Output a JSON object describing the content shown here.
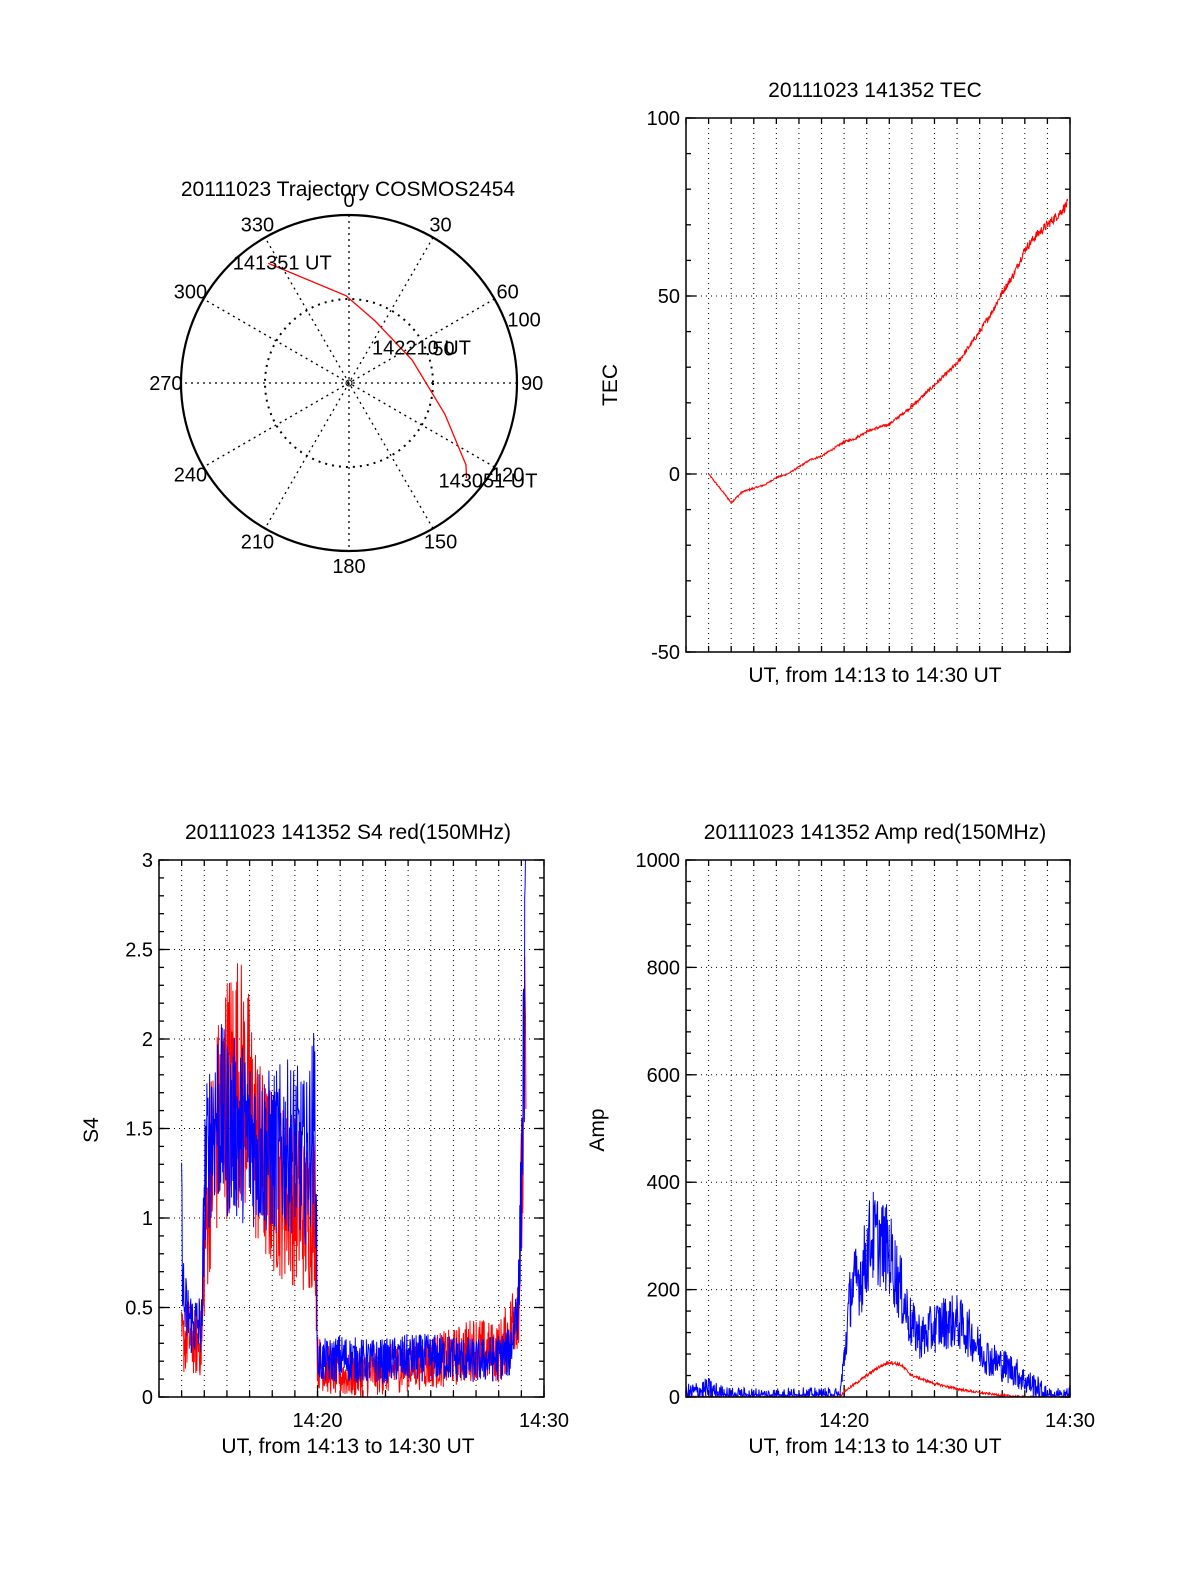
{
  "colors": {
    "red": "#ff0000",
    "blue": "#0000ff",
    "axis": "#000000"
  },
  "chart_data": [
    {
      "type": "polar",
      "title": "20111023 Trajectory COSMOS2454",
      "angle_labels": [
        "0",
        "30",
        "60",
        "90",
        "120",
        "150",
        "180",
        "210",
        "240",
        "270",
        "300",
        "330"
      ],
      "ring_labels": [
        "50",
        "100"
      ],
      "ring_values": [
        50,
        100
      ],
      "series": [
        {
          "color": "#ff0000",
          "points": [
            {
              "az": 326,
              "r": 86
            },
            {
              "az": 358,
              "r": 52
            },
            {
              "az": 23,
              "r": 40
            },
            {
              "az": 70,
              "r": 40
            },
            {
              "az": 108,
              "r": 60
            },
            {
              "az": 125,
              "r": 85
            },
            {
              "az": 129,
              "r": 90
            }
          ]
        }
      ],
      "annotations": [
        {
          "text": "141351 UT",
          "az": 331,
          "r": 82
        },
        {
          "text": "142210 UT",
          "az": 64,
          "r": 48
        },
        {
          "text": "143051 UT",
          "az": 125,
          "r": 101
        }
      ]
    },
    {
      "type": "line",
      "title": "20111023 141352 TEC",
      "xlabel": "UT, from 14:13 to 14:30 UT",
      "ylabel": "TEC",
      "xlim": [
        13.0,
        30.0
      ],
      "ylim": [
        -50,
        100
      ],
      "yticks": [
        "-50",
        "0",
        "50",
        "100"
      ],
      "ytick_values": [
        -50,
        0,
        50,
        100
      ],
      "xgrid": [
        14.0,
        15.0,
        16.0,
        17.0,
        18.0,
        19.0,
        20.0,
        21.0,
        22.0,
        23.0,
        24.0,
        25.0,
        26.0,
        27.0,
        28.0,
        29.0
      ],
      "series": [
        {
          "color": "#ff0000",
          "noise": 1.2,
          "x": [
            14.0,
            15.0,
            15.5,
            16.0,
            16.5,
            17.0,
            17.5,
            18.0,
            18.5,
            19.0,
            19.5,
            20.0,
            20.5,
            21.0,
            22.0,
            23.0,
            24.0,
            25.0,
            26.0,
            26.5,
            27.0,
            27.5,
            28.0,
            28.5,
            29.0,
            29.5,
            29.9
          ],
          "y": [
            0,
            -8,
            -5,
            -4,
            -3,
            -1,
            0,
            2,
            4,
            5,
            7,
            9,
            10,
            12,
            14,
            19,
            25,
            31,
            40,
            45,
            51,
            56,
            63,
            67,
            70,
            73,
            76
          ]
        }
      ]
    },
    {
      "type": "line",
      "title": "20111023 141352 S4 red(150MHz)",
      "xlabel": "UT, from 14:13 to 14:30 UT",
      "ylabel": "S4",
      "xlim": [
        13.0,
        30.0
      ],
      "ylim": [
        0,
        3
      ],
      "yticks": [
        "0",
        "0.5",
        "1",
        "1.5",
        "2",
        "2.5",
        "3"
      ],
      "ytick_values": [
        0,
        0.5,
        1,
        1.5,
        2,
        2.5,
        3
      ],
      "xticks": [
        "14:20",
        "14:30"
      ],
      "xtick_values": [
        20,
        30
      ],
      "xgrid": [
        14.0,
        15.0,
        16.0,
        17.0,
        18.0,
        19.0,
        20.0,
        21.0,
        22.0,
        23.0,
        24.0,
        25.0,
        26.0,
        27.0,
        28.0,
        29.0
      ],
      "series": [
        {
          "color": "#ff0000",
          "noise": 0.55,
          "x": [
            14.0,
            14.3,
            14.6,
            14.9,
            15.0,
            15.3,
            15.6,
            16.0,
            16.5,
            17.0,
            17.5,
            18.0,
            18.5,
            19.0,
            19.5,
            19.9,
            20.0,
            20.5,
            21.0,
            22.0,
            23.0,
            24.0,
            25.0,
            26.0,
            26.5,
            27.0,
            27.5,
            28.0,
            28.5,
            28.9,
            29.2
          ],
          "y": [
            0.3,
            0.35,
            0.3,
            0.3,
            0.8,
            1.3,
            1.5,
            1.7,
            1.8,
            1.6,
            1.3,
            1.2,
            1.15,
            1.1,
            1.0,
            1.1,
            0.2,
            0.15,
            0.12,
            0.12,
            0.15,
            0.18,
            0.2,
            0.22,
            0.25,
            0.28,
            0.25,
            0.25,
            0.35,
            0.6,
            2.0
          ]
        },
        {
          "color": "#0000ff",
          "noise": 0.45,
          "x": [
            14.0,
            14.1,
            14.5,
            14.9,
            15.0,
            15.3,
            15.6,
            16.0,
            16.5,
            17.0,
            17.5,
            18.0,
            18.5,
            19.0,
            19.5,
            19.9,
            20.0,
            20.5,
            21.0,
            22.0,
            23.0,
            24.0,
            25.0,
            26.0,
            27.0,
            28.0,
            28.5,
            28.9,
            29.2
          ],
          "y": [
            1.0,
            0.5,
            0.4,
            0.4,
            1.2,
            1.5,
            1.6,
            1.5,
            1.5,
            1.45,
            1.4,
            1.35,
            1.4,
            1.4,
            1.3,
            1.6,
            0.2,
            0.2,
            0.22,
            0.2,
            0.2,
            0.22,
            0.22,
            0.22,
            0.2,
            0.22,
            0.25,
            0.6,
            2.5
          ]
        }
      ]
    },
    {
      "type": "line",
      "title": "20111023 141352 Amp red(150MHz)",
      "xlabel": "UT, from 14:13 to 14:30 UT",
      "ylabel": "Amp",
      "xlim": [
        13.0,
        30.0
      ],
      "ylim": [
        0,
        1000
      ],
      "yticks": [
        "0",
        "200",
        "400",
        "600",
        "800",
        "1000"
      ],
      "ytick_values": [
        0,
        200,
        400,
        600,
        800,
        1000
      ],
      "xticks": [
        "14:20",
        "14:30"
      ],
      "xtick_values": [
        20,
        30
      ],
      "xgrid": [
        14.0,
        15.0,
        16.0,
        17.0,
        18.0,
        19.0,
        20.0,
        21.0,
        22.0,
        23.0,
        24.0,
        25.0,
        26.0,
        27.0,
        28.0,
        29.0
      ],
      "series": [
        {
          "color": "#ff0000",
          "noise": 12,
          "x": [
            13.0,
            19.8,
            20.0,
            20.5,
            21.0,
            21.5,
            22.0,
            22.5,
            23.0,
            24.0,
            25.0,
            26.0,
            27.0,
            28.0,
            30.0
          ],
          "y": [
            0,
            0,
            10,
            25,
            40,
            55,
            65,
            60,
            40,
            25,
            15,
            8,
            3,
            0,
            0
          ]
        },
        {
          "color": "#0000ff",
          "noise": 120,
          "x": [
            13.0,
            13.5,
            14.0,
            14.5,
            15.0,
            19.8,
            19.95,
            20.3,
            20.8,
            21.2,
            21.6,
            22.0,
            22.5,
            23.0,
            23.5,
            24.0,
            24.5,
            25.0,
            25.5,
            26.0,
            26.5,
            27.0,
            27.5,
            28.0,
            28.5,
            29.0,
            30.0
          ],
          "y": [
            5,
            10,
            15,
            5,
            0,
            0,
            50,
            200,
            230,
            300,
            290,
            270,
            200,
            130,
            110,
            130,
            140,
            140,
            120,
            90,
            70,
            60,
            50,
            30,
            20,
            0,
            0
          ]
        }
      ]
    }
  ]
}
